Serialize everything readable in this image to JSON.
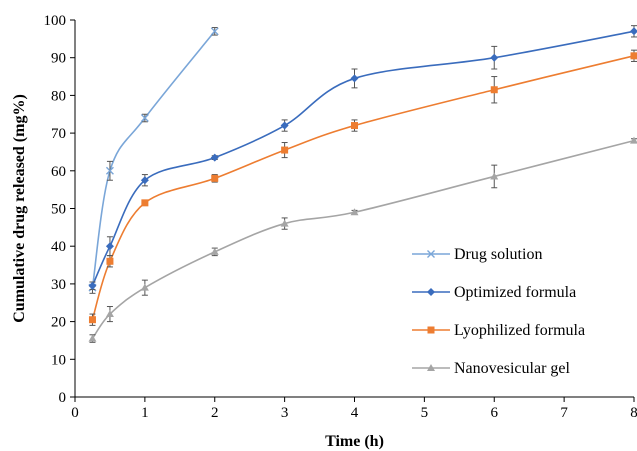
{
  "chart_data": {
    "type": "line",
    "title": "",
    "xlabel": "Time (h)",
    "ylabel": "Cumulative drug released (mg%)",
    "xlim": [
      0,
      8
    ],
    "ylim": [
      0,
      100
    ],
    "x_ticks": [
      0,
      1,
      2,
      3,
      4,
      5,
      6,
      7,
      8
    ],
    "y_ticks": [
      0,
      10,
      20,
      30,
      40,
      50,
      60,
      70,
      80,
      90,
      100
    ],
    "grid": false,
    "legend_position": "bottom-right",
    "series": [
      {
        "name": "Drug solution",
        "color": "#7aa6d8",
        "marker": "x",
        "x": [
          0.25,
          0.5,
          1,
          2
        ],
        "values": [
          29,
          60,
          74,
          97
        ],
        "errors": [
          1.5,
          2.5,
          1.0,
          1.0
        ]
      },
      {
        "name": "Optimized formula",
        "color": "#3a6cbd",
        "marker": "diamond",
        "x": [
          0.25,
          0.5,
          1,
          2,
          3,
          4,
          6,
          8
        ],
        "values": [
          29.5,
          40,
          57.5,
          63.5,
          72,
          84.5,
          90,
          97
        ],
        "errors": [
          1.0,
          2.5,
          1.5,
          0.5,
          1.5,
          2.5,
          3.0,
          1.5
        ]
      },
      {
        "name": "Lyophilized formula",
        "color": "#ed7d31",
        "marker": "square",
        "x": [
          0.25,
          0.5,
          1,
          2,
          3,
          4,
          6,
          8
        ],
        "values": [
          20.5,
          36,
          51.5,
          58,
          65.5,
          72,
          81.5,
          90.5
        ],
        "errors": [
          1.5,
          1.5,
          0.5,
          1.0,
          2.0,
          1.5,
          3.5,
          1.5
        ]
      },
      {
        "name": "Nanovesicular gel",
        "color": "#a5a5a5",
        "marker": "triangle",
        "x": [
          0.25,
          0.5,
          1,
          2,
          3,
          4,
          6,
          8
        ],
        "values": [
          15.5,
          22,
          29,
          38.5,
          46,
          49,
          58.5,
          68
        ],
        "errors": [
          1.0,
          2.0,
          2.0,
          1.0,
          1.5,
          0.5,
          3.0,
          0.5
        ]
      }
    ]
  }
}
